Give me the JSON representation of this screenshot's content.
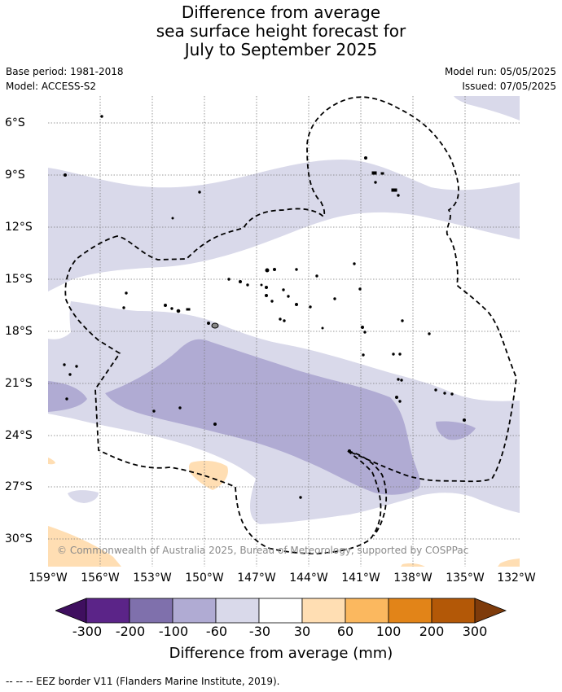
{
  "header": {
    "title_line1": "Difference from average",
    "title_line2": "sea surface height forecast for",
    "title_line3": "July to September 2025",
    "base_period": "Base period: 1981-2018",
    "model": "Model: ACCESS-S2",
    "model_run": "Model run: 05/05/2025",
    "issued": "Issued: 07/05/2025"
  },
  "map": {
    "lat_labels": [
      "6°S",
      "9°S",
      "12°S",
      "15°S",
      "18°S",
      "21°S",
      "24°S",
      "27°S",
      "30°S"
    ],
    "lon_labels": [
      "159°W",
      "156°W",
      "153°W",
      "150°W",
      "147°W",
      "144°W",
      "141°W",
      "138°W",
      "135°W",
      "132°W"
    ],
    "lon_range": [
      -159,
      -132
    ],
    "lat_range": [
      -31.6,
      -4.5
    ],
    "copyright": "© Commonwealth of Australia 2025, Bureau of Meteorology, supported by COSPPac"
  },
  "colorbar": {
    "labels": [
      "-300",
      "-200",
      "-100",
      "-60",
      "-30",
      "30",
      "60",
      "100",
      "200",
      "300"
    ],
    "title": "Difference from average (mm)",
    "colors": [
      "#3f0f5f",
      "#5b2488",
      "#7f70ac",
      "#b0abd3",
      "#d9d9ea",
      "#ffffff",
      "#ffdeb3",
      "#fbb85f",
      "#e28418",
      "#b35807",
      "#7e3b0b"
    ]
  },
  "footnote": "--  --  -- EEZ border V11 (Flanders Marine Institute, 2019)."
}
